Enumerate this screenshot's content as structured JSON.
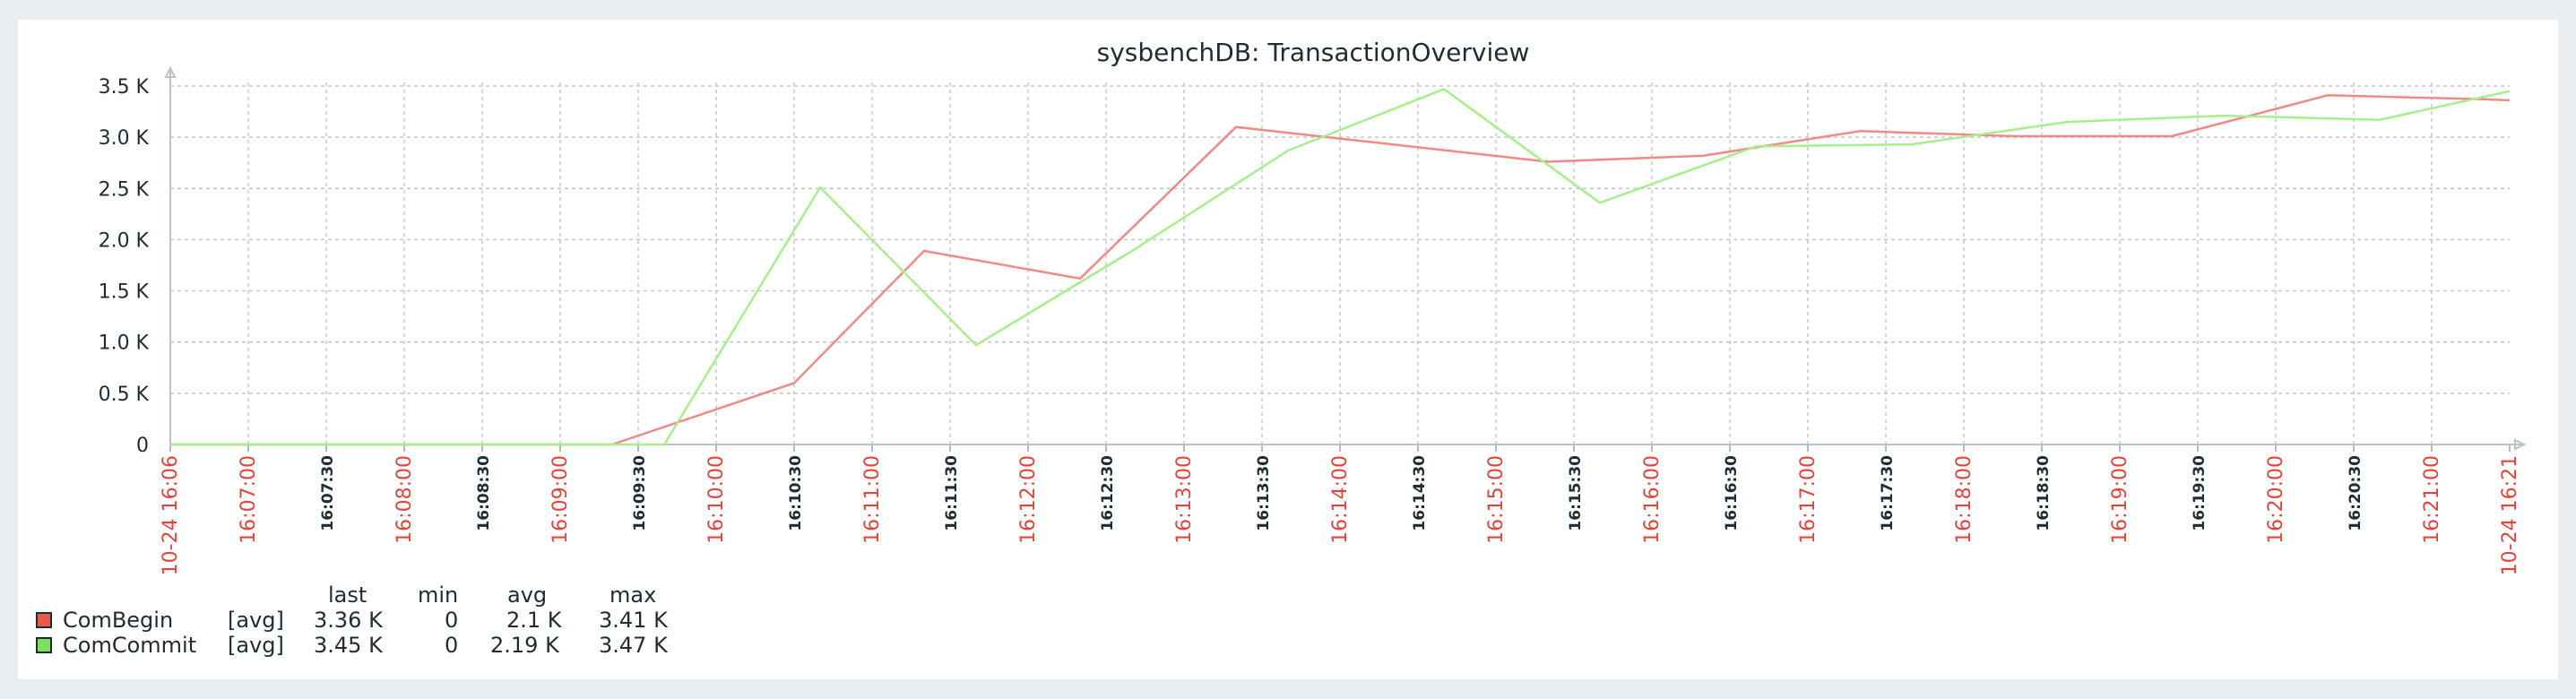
{
  "chart_data": {
    "type": "line",
    "title": "sysbenchDB: TransactionOverview",
    "y_ticks": [
      "0",
      "0.5 K",
      "1.0 K",
      "1.5 K",
      "2.0 K",
      "2.5 K",
      "3.0 K",
      "3.5 K"
    ],
    "ylim": [
      0,
      3500
    ],
    "x_range": [
      "16:06",
      "16:21"
    ],
    "x_ticks": [
      {
        "label": "10-24 16:06",
        "major": true
      },
      {
        "label": "16:07:00",
        "major": true
      },
      {
        "label": "16:07:30",
        "major": false
      },
      {
        "label": "16:08:00",
        "major": true
      },
      {
        "label": "16:08:30",
        "major": false
      },
      {
        "label": "16:09:00",
        "major": true
      },
      {
        "label": "16:09:30",
        "major": false
      },
      {
        "label": "16:10:00",
        "major": true
      },
      {
        "label": "16:10:30",
        "major": false
      },
      {
        "label": "16:11:00",
        "major": true
      },
      {
        "label": "16:11:30",
        "major": false
      },
      {
        "label": "16:12:00",
        "major": true
      },
      {
        "label": "16:12:30",
        "major": false
      },
      {
        "label": "16:13:00",
        "major": true
      },
      {
        "label": "16:13:30",
        "major": false
      },
      {
        "label": "16:14:00",
        "major": true
      },
      {
        "label": "16:14:30",
        "major": false
      },
      {
        "label": "16:15:00",
        "major": true
      },
      {
        "label": "16:15:30",
        "major": false
      },
      {
        "label": "16:16:00",
        "major": true
      },
      {
        "label": "16:16:30",
        "major": false
      },
      {
        "label": "16:17:00",
        "major": true
      },
      {
        "label": "16:17:30",
        "major": false
      },
      {
        "label": "16:18:00",
        "major": true
      },
      {
        "label": "16:18:30",
        "major": false
      },
      {
        "label": "16:19:00",
        "major": true
      },
      {
        "label": "16:19:30",
        "major": false
      },
      {
        "label": "16:20:00",
        "major": true
      },
      {
        "label": "16:20:30",
        "major": false
      },
      {
        "label": "16:21:00",
        "major": true
      },
      {
        "label": "10-24 16:21",
        "major": true
      }
    ],
    "grid": true,
    "legend_headers": {
      "last": "last",
      "min": "min",
      "avg": "avg",
      "max": "max"
    },
    "series": [
      {
        "name": "ComBegin",
        "func": "[avg]",
        "color": "#e8584f",
        "line_color": "#ef8a84",
        "last": "3.36 K",
        "min": "0",
        "avg": "2.1 K",
        "max": "3.41 K",
        "points": [
          [
            "16:06:00",
            0
          ],
          [
            "16:06:30",
            0
          ],
          [
            "16:07:00",
            0
          ],
          [
            "16:07:30",
            0
          ],
          [
            "16:08:00",
            0
          ],
          [
            "16:08:30",
            0
          ],
          [
            "16:08:50",
            0
          ],
          [
            "16:10:00",
            600
          ],
          [
            "16:10:50",
            1890
          ],
          [
            "16:11:50",
            1620
          ],
          [
            "16:12:50",
            3100
          ],
          [
            "16:14:50",
            2760
          ],
          [
            "16:15:50",
            2820
          ],
          [
            "16:16:50",
            3060
          ],
          [
            "16:17:50",
            3010
          ],
          [
            "16:18:50",
            3010
          ],
          [
            "16:19:50",
            3410
          ],
          [
            "16:20:50",
            3370
          ],
          [
            "16:21:00",
            3360
          ]
        ]
      },
      {
        "name": "ComCommit",
        "func": "[avg]",
        "color": "#7be05a",
        "line_color": "#a6ef8c",
        "last": "3.45 K",
        "min": "0",
        "avg": "2.19 K",
        "max": "3.47 K",
        "points": [
          [
            "16:06:00",
            0
          ],
          [
            "16:06:30",
            0
          ],
          [
            "16:07:00",
            0
          ],
          [
            "16:07:30",
            0
          ],
          [
            "16:08:00",
            0
          ],
          [
            "16:08:30",
            0
          ],
          [
            "16:09:00",
            0
          ],
          [
            "16:09:10",
            0
          ],
          [
            "16:10:10",
            2510
          ],
          [
            "16:11:10",
            970
          ],
          [
            "16:12:10",
            1890
          ],
          [
            "16:13:10",
            2870
          ],
          [
            "16:14:10",
            3470
          ],
          [
            "16:15:10",
            2360
          ],
          [
            "16:16:10",
            2910
          ],
          [
            "16:17:10",
            2930
          ],
          [
            "16:18:10",
            3150
          ],
          [
            "16:19:10",
            3210
          ],
          [
            "16:20:10",
            3170
          ],
          [
            "16:21:00",
            3450
          ]
        ]
      }
    ]
  }
}
